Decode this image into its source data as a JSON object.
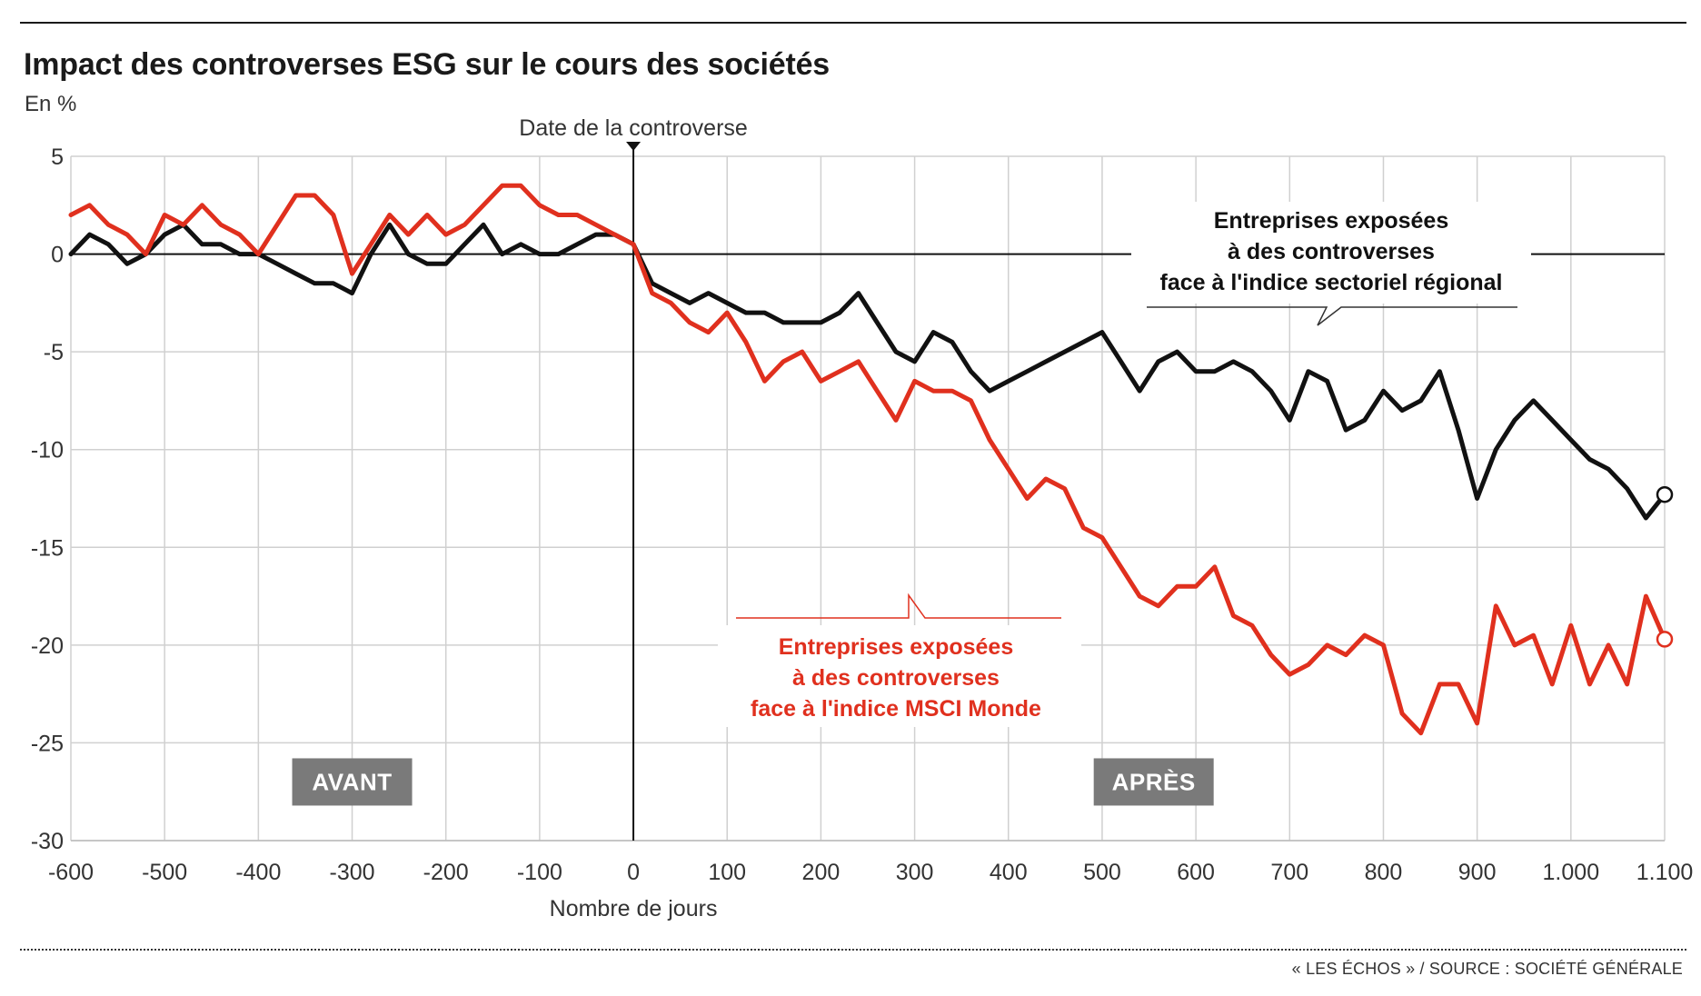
{
  "header": {
    "title": "Impact des controverses ESG sur le cours des sociétés",
    "unit": "En %"
  },
  "footer": {
    "source": "« LES ÉCHOS » / SOURCE : SOCIÉTÉ GÉNÉRALE"
  },
  "colors": {
    "sector_series": "#111111",
    "msci_series": "#e0301e",
    "grid": "#d0d0d0",
    "label_box": "#7a7a7a"
  },
  "chart_data": {
    "type": "line",
    "title": "Impact des controverses ESG sur le cours des sociétés",
    "ylabel": "En %",
    "xlabel": "Nombre de jours",
    "xlim": [
      -600,
      1100
    ],
    "ylim": [
      -30,
      5
    ],
    "grid": true,
    "x_ticks": [
      -600,
      -500,
      -400,
      -300,
      -200,
      -100,
      0,
      100,
      200,
      300,
      400,
      500,
      600,
      700,
      800,
      900,
      1000,
      1100
    ],
    "x_tick_labels": [
      "-600",
      "-500",
      "-400",
      "-300",
      "-200",
      "-100",
      "0",
      "100",
      "200",
      "300",
      "400",
      "500",
      "600",
      "700",
      "800",
      "900",
      "1.000",
      "1.100"
    ],
    "y_ticks": [
      5,
      0,
      -5,
      -10,
      -15,
      -20,
      -25,
      -30
    ],
    "y_tick_labels": [
      "5",
      "0",
      "-5",
      "-10",
      "-15",
      "-20",
      "-25",
      "-30"
    ],
    "event_marker": {
      "x": 0,
      "label": "Date de la controverse"
    },
    "period_labels": [
      {
        "text": "AVANT",
        "x": -300,
        "y": -27
      },
      {
        "text": "APRÈS",
        "x": 555,
        "y": -27
      }
    ],
    "series": [
      {
        "name": "Entreprises exposées à des controverses face à l'indice sectoriel régional",
        "label_lines": [
          "Entreprises exposées",
          "à des controverses",
          "face à l'indice sectoriel régional"
        ],
        "color": "#111111",
        "x": [
          -600,
          -580,
          -560,
          -540,
          -520,
          -500,
          -480,
          -460,
          -440,
          -420,
          -400,
          -380,
          -360,
          -340,
          -320,
          -300,
          -280,
          -260,
          -240,
          -220,
          -200,
          -180,
          -160,
          -140,
          -120,
          -100,
          -80,
          -60,
          -40,
          -20,
          0,
          20,
          40,
          60,
          80,
          100,
          120,
          140,
          160,
          180,
          200,
          220,
          240,
          260,
          280,
          300,
          320,
          340,
          360,
          380,
          400,
          420,
          440,
          460,
          480,
          500,
          520,
          540,
          560,
          580,
          600,
          620,
          640,
          660,
          680,
          700,
          720,
          740,
          760,
          780,
          800,
          820,
          840,
          860,
          880,
          900,
          920,
          940,
          960,
          980,
          1000,
          1020,
          1040,
          1060,
          1080,
          1100
        ],
        "y": [
          0,
          1,
          0.5,
          -0.5,
          0,
          1,
          1.5,
          0.5,
          0.5,
          0,
          0,
          -0.5,
          -1,
          -1.5,
          -1.5,
          -2,
          0,
          1.5,
          0,
          -0.5,
          -0.5,
          0.5,
          1.5,
          0,
          0.5,
          0,
          0,
          0.5,
          1,
          1,
          0.5,
          -1.5,
          -2,
          -2.5,
          -2,
          -2.5,
          -3,
          -3,
          -3.5,
          -3.5,
          -3.5,
          -3,
          -2,
          -3.5,
          -5,
          -5.5,
          -4,
          -4.5,
          -6,
          -7,
          -6.5,
          -6,
          -5.5,
          -5,
          -4.5,
          -4,
          -5.5,
          -7,
          -5.5,
          -5,
          -6,
          -6,
          -5.5,
          -6,
          -7,
          -8.5,
          -6,
          -6.5,
          -9,
          -8.5,
          -7,
          -8,
          -7.5,
          -6,
          -9,
          -12.5,
          -10,
          -8.5,
          -7.5,
          -8.5,
          -9.5,
          -10.5,
          -11,
          -12,
          -13.5,
          -12.3
        ]
      },
      {
        "name": "Entreprises exposées à des controverses face à l'indice MSCI Monde",
        "label_lines": [
          "Entreprises exposées",
          "à des controverses",
          "face à l'indice MSCI Monde"
        ],
        "color": "#e0301e",
        "x": [
          -600,
          -580,
          -560,
          -540,
          -520,
          -500,
          -480,
          -460,
          -440,
          -420,
          -400,
          -380,
          -360,
          -340,
          -320,
          -300,
          -280,
          -260,
          -240,
          -220,
          -200,
          -180,
          -160,
          -140,
          -120,
          -100,
          -80,
          -60,
          -40,
          -20,
          0,
          20,
          40,
          60,
          80,
          100,
          120,
          140,
          160,
          180,
          200,
          220,
          240,
          260,
          280,
          300,
          320,
          340,
          360,
          380,
          400,
          420,
          440,
          460,
          480,
          500,
          520,
          540,
          560,
          580,
          600,
          620,
          640,
          660,
          680,
          700,
          720,
          740,
          760,
          780,
          800,
          820,
          840,
          860,
          880,
          900,
          920,
          940,
          960,
          980,
          1000,
          1020,
          1040,
          1060,
          1080,
          1100
        ],
        "y": [
          2,
          2.5,
          1.5,
          1,
          0,
          2,
          1.5,
          2.5,
          1.5,
          1,
          0,
          1.5,
          3,
          3,
          2,
          -1,
          0.5,
          2,
          1,
          2,
          1,
          1.5,
          2.5,
          3.5,
          3.5,
          2.5,
          2,
          2,
          1.5,
          1,
          0.5,
          -2,
          -2.5,
          -3.5,
          -4,
          -3,
          -4.5,
          -6.5,
          -5.5,
          -5,
          -6.5,
          -6,
          -5.5,
          -7,
          -8.5,
          -6.5,
          -7,
          -7,
          -7.5,
          -9.5,
          -11,
          -12.5,
          -11.5,
          -12,
          -14,
          -14.5,
          -16,
          -17.5,
          -18,
          -17,
          -17,
          -16,
          -18.5,
          -19,
          -20.5,
          -21.5,
          -21,
          -20,
          -20.5,
          -19.5,
          -20,
          -23.5,
          -24.5,
          -22,
          -22,
          -24,
          -18,
          -20,
          -19.5,
          -22,
          -19,
          -22,
          -20,
          -22,
          -17.5,
          -19.7
        ]
      }
    ]
  }
}
